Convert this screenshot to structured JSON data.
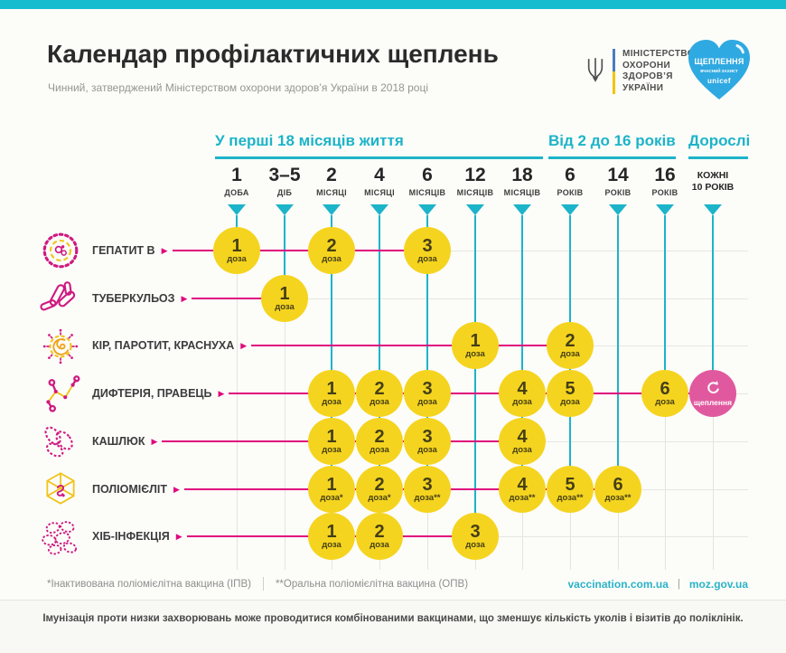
{
  "page": {
    "title": "Календар профілактичних щеплень",
    "subtitle": "Чинний, затверджений Міністерством охорони здоров’я України в 2018 році"
  },
  "ministry_logo": {
    "lines": [
      "МІНІСТЕРСТВО",
      "ОХОРОНИ",
      "ЗДОРОВ’Я",
      "УКРАЇНИ"
    ]
  },
  "heart_badge": {
    "title": "ЩЕПЛЕННЯ",
    "subtitle": "ВЧАСНИЙ ЗАХИСТ",
    "brand": "unicef"
  },
  "schedule": {
    "groups": [
      {
        "label": "У перші 18 місяців життя",
        "col_start": 0,
        "col_end": 6
      },
      {
        "label": "Від 2 до 16 років",
        "col_start": 7,
        "col_end": 9
      },
      {
        "label": "Дорослі",
        "col_start": 10,
        "col_end": 10
      }
    ],
    "columns": [
      {
        "big": "1",
        "small": "ДОБА"
      },
      {
        "big": "3–5",
        "small": "ДІБ"
      },
      {
        "big": "2",
        "small": "МІСЯЦІ"
      },
      {
        "big": "4",
        "small": "МІСЯЦІ"
      },
      {
        "big": "6",
        "small": "МІСЯЦІВ"
      },
      {
        "big": "12",
        "small": "МІСЯЦІВ"
      },
      {
        "big": "18",
        "small": "МІСЯЦІВ"
      },
      {
        "big": "6",
        "small": "РОКІВ"
      },
      {
        "big": "14",
        "small": "РОКІВ"
      },
      {
        "big": "16",
        "small": "РОКІВ"
      },
      {
        "big": "",
        "small": "КОЖНІ 10 РОКІВ"
      }
    ],
    "rows": [
      {
        "label": "ГЕПАТИТ В",
        "icon": "hepatitis-b",
        "doses": [
          {
            "col": 0,
            "num": "1",
            "sub": "доза"
          },
          {
            "col": 2,
            "num": "2",
            "sub": "доза"
          },
          {
            "col": 4,
            "num": "3",
            "sub": "доза"
          }
        ]
      },
      {
        "label": "ТУБЕРКУЛЬОЗ",
        "icon": "tuberculosis",
        "doses": [
          {
            "col": 1,
            "num": "1",
            "sub": "доза"
          }
        ]
      },
      {
        "label": "КІР, ПАРОТИТ, КРАСНУХА",
        "icon": "measles-mumps-rubella",
        "doses": [
          {
            "col": 5,
            "num": "1",
            "sub": "доза"
          },
          {
            "col": 7,
            "num": "2",
            "sub": "доза"
          }
        ]
      },
      {
        "label": "ДИФТЕРІЯ, ПРАВЕЦЬ",
        "icon": "diphtheria-tetanus",
        "doses": [
          {
            "col": 2,
            "num": "1",
            "sub": "доза"
          },
          {
            "col": 3,
            "num": "2",
            "sub": "доза"
          },
          {
            "col": 4,
            "num": "3",
            "sub": "доза"
          },
          {
            "col": 6,
            "num": "4",
            "sub": "доза"
          },
          {
            "col": 7,
            "num": "5",
            "sub": "доза"
          },
          {
            "col": 9,
            "num": "6",
            "sub": "доза"
          },
          {
            "col": 10,
            "type": "booster",
            "num": "",
            "sub": "щеплення"
          }
        ]
      },
      {
        "label": "КАШЛЮК",
        "icon": "pertussis",
        "doses": [
          {
            "col": 2,
            "num": "1",
            "sub": "доза"
          },
          {
            "col": 3,
            "num": "2",
            "sub": "доза"
          },
          {
            "col": 4,
            "num": "3",
            "sub": "доза"
          },
          {
            "col": 6,
            "num": "4",
            "sub": "доза"
          }
        ]
      },
      {
        "label": "ПОЛІОМІЄЛІТ",
        "icon": "polio",
        "doses": [
          {
            "col": 2,
            "num": "1",
            "sub": "доза*"
          },
          {
            "col": 3,
            "num": "2",
            "sub": "доза*"
          },
          {
            "col": 4,
            "num": "3",
            "sub": "доза**"
          },
          {
            "col": 6,
            "num": "4",
            "sub": "доза**"
          },
          {
            "col": 7,
            "num": "5",
            "sub": "доза**"
          },
          {
            "col": 8,
            "num": "6",
            "sub": "доза**"
          }
        ]
      },
      {
        "label": "ХІБ-ІНФЕКЦІЯ",
        "icon": "hib-infection",
        "doses": [
          {
            "col": 2,
            "num": "1",
            "sub": "доза"
          },
          {
            "col": 3,
            "num": "2",
            "sub": "доза"
          },
          {
            "col": 5,
            "num": "3",
            "sub": "доза"
          }
        ]
      }
    ]
  },
  "footnotes": {
    "ipv": "*Інактивована поліомієлітна вакцина (ІПВ)",
    "opv": "**Оральна поліомієлітна вакцина (ОПВ)"
  },
  "links": {
    "site1": "vaccination.com.ua",
    "site2": "moz.gov.ua"
  },
  "bottom_note": "Імунізація проти низки захворювань може проводитися комбінованими вакцинами, що зменшує кількість уколів і візитів до поліклінік.",
  "colors": {
    "accent_cyan": "#1cb4c9",
    "dose_yellow": "#f5d41f",
    "line_magenta": "#e0097e",
    "booster_pink": "#e0599e",
    "heart_blue": "#2fa9e1"
  }
}
